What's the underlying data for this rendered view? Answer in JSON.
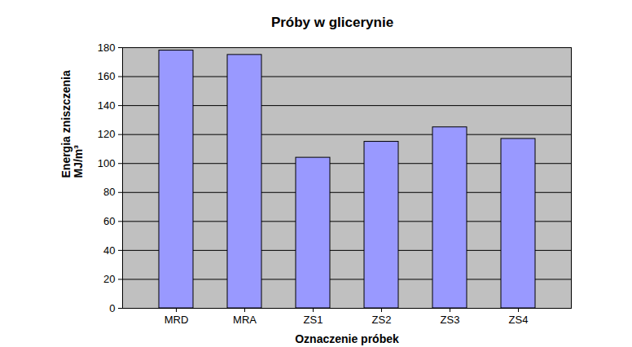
{
  "chart_data": {
    "type": "bar",
    "title": "Próby w glicerynie",
    "x_label": "Oznaczenie próbek",
    "y_label": "Energia zniszczenia\nMJ/m³",
    "categories": [
      "MRD",
      "MRA",
      "ZS1",
      "ZS2",
      "ZS3",
      "ZS4"
    ],
    "values": [
      178,
      175,
      104,
      115,
      125,
      117
    ],
    "color": "#9999ff",
    "ylim": [
      0,
      180
    ],
    "yticks": [
      0,
      20,
      40,
      60,
      80,
      100,
      120,
      140,
      160,
      180
    ],
    "grid": true
  }
}
